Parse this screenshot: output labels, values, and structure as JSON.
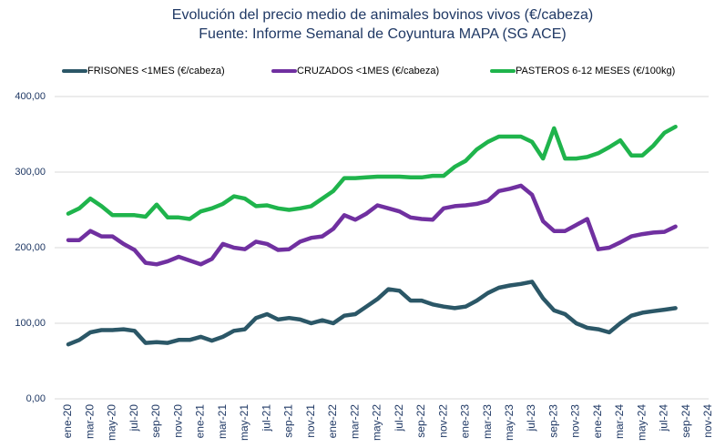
{
  "chart_data": {
    "type": "line",
    "title": "Evolución del precio medio de animales bovinos vivos (€/cabeza)",
    "subtitle": "Fuente: Informe Semanal de Coyuntura MAPA (SG ACE)",
    "categories": [
      "ene-20",
      null,
      "mar-20",
      null,
      "may-20",
      null,
      "jul-20",
      null,
      "sep-20",
      null,
      "nov-20",
      null,
      "ene-21",
      null,
      "mar-21",
      null,
      "may-21",
      null,
      "jul-21",
      null,
      "sep-21",
      null,
      "nov-21",
      null,
      "ene-22",
      null,
      "mar-22",
      null,
      "may-22",
      null,
      "jul-22",
      null,
      "sep-22",
      null,
      "nov-22",
      null,
      "ene-23",
      null,
      "mar-23",
      null,
      "may-23",
      null,
      "jul-23",
      null,
      "sep-23",
      null,
      "nov-23",
      null,
      "ene-24",
      null,
      "mar-24",
      null,
      "may-24",
      null,
      "jul-24",
      null,
      "sep-24",
      null,
      "nov-24"
    ],
    "series": [
      {
        "name": "FRISONES <1MES (€/cabeza)",
        "color": "#2b5767",
        "values": [
          72,
          78,
          88,
          91,
          91,
          92,
          90,
          74,
          75,
          74,
          78,
          78,
          82,
          77,
          82,
          90,
          92,
          107,
          112,
          105,
          107,
          105,
          100,
          104,
          100,
          110,
          112,
          122,
          132,
          145,
          143,
          130,
          130,
          125,
          122,
          120,
          122,
          130,
          140,
          147,
          150,
          152,
          155,
          133,
          117,
          112,
          100,
          94,
          92,
          88,
          100,
          110,
          114,
          116,
          118,
          120,
          null,
          null,
          null
        ]
      },
      {
        "name": "CRUZADOS <1MES (€/cabeza)",
        "color": "#7030a0",
        "values": [
          210,
          210,
          222,
          215,
          215,
          205,
          197,
          180,
          178,
          182,
          188,
          183,
          178,
          185,
          205,
          200,
          198,
          208,
          205,
          197,
          198,
          208,
          213,
          215,
          225,
          243,
          237,
          245,
          256,
          252,
          248,
          240,
          238,
          237,
          252,
          255,
          256,
          258,
          262,
          275,
          278,
          282,
          270,
          235,
          222,
          222,
          230,
          238,
          198,
          200,
          207,
          215,
          218,
          220,
          221,
          228,
          null,
          null,
          null
        ]
      },
      {
        "name": "PASTEROS 6-12 MESES (€/100kg)",
        "color": "#1fb44c",
        "values": [
          245,
          252,
          265,
          255,
          243,
          243,
          243,
          241,
          257,
          240,
          240,
          238,
          248,
          252,
          258,
          268,
          265,
          255,
          256,
          252,
          250,
          252,
          255,
          265,
          275,
          292,
          292,
          293,
          294,
          294,
          294,
          293,
          293,
          295,
          295,
          307,
          315,
          330,
          340,
          347,
          347,
          347,
          340,
          318,
          358,
          318,
          318,
          320,
          325,
          333,
          342,
          322,
          322,
          335,
          352,
          360,
          null,
          null,
          null
        ]
      }
    ],
    "ylim": [
      0,
      400
    ],
    "yticks": [
      {
        "value": 0,
        "label": "0,00"
      },
      {
        "value": 100,
        "label": "100,00"
      },
      {
        "value": 200,
        "label": "200,00"
      },
      {
        "value": 300,
        "label": "300,00"
      },
      {
        "value": 400,
        "label": "400,00"
      }
    ],
    "grid": true,
    "legend": "top"
  }
}
